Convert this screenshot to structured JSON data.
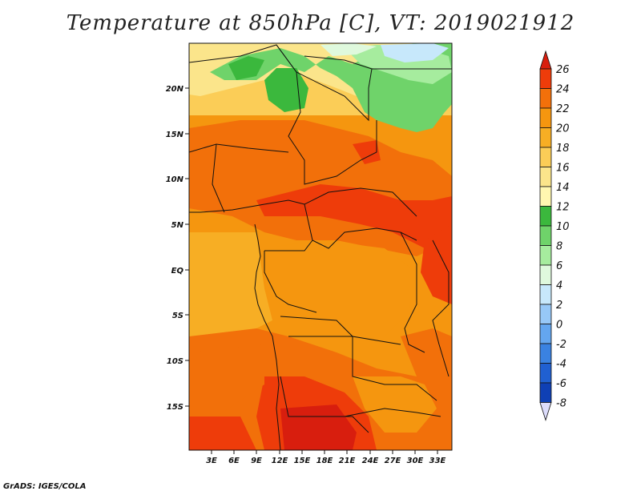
{
  "title": "Temperature at 850hPa [C], VT: 2019021912",
  "credit": "GrADS: IGES/COLA",
  "map": {
    "lat_ticks": [
      "20N",
      "15N",
      "10N",
      "5N",
      "EQ",
      "5S",
      "10S",
      "15S"
    ],
    "lon_ticks": [
      "3E",
      "6E",
      "9E",
      "12E",
      "15E",
      "18E",
      "21E",
      "24E",
      "27E",
      "30E",
      "33E"
    ]
  },
  "colorbar": {
    "levels": [
      "26",
      "24",
      "22",
      "20",
      "18",
      "16",
      "14",
      "12",
      "10",
      "8",
      "6",
      "4",
      "2",
      "0",
      "-2",
      "-4",
      "-6",
      "-8"
    ],
    "colors": [
      "#d81e0e",
      "#ee3c0a",
      "#f2700a",
      "#f5960f",
      "#f7ae24",
      "#fbcd57",
      "#fbe58b",
      "#fff7b0",
      "#3bb83d",
      "#6fd36a",
      "#a6ec9e",
      "#dff9dd",
      "#c7e8fb",
      "#97c8f7",
      "#64a6ef",
      "#3a82e1",
      "#2060d1",
      "#0f40b5",
      "#0a2290"
    ],
    "top_color": "#d81e0e",
    "bottom_color": "#dcdcfb"
  }
}
